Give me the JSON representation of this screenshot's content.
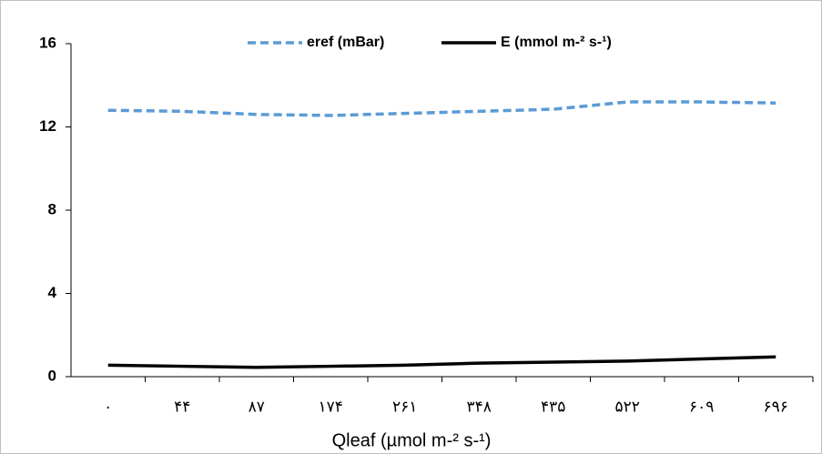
{
  "chart_data": {
    "type": "line",
    "x_label": "Qleaf (µmol m-² s-¹)",
    "categories": [
      "۰",
      "۴۴",
      "۸۷",
      "۱۷۴",
      "۲۶۱",
      "۳۴۸",
      "۴۳۵",
      "۵۲۲",
      "۶۰۹",
      "۶۹۶"
    ],
    "series": [
      {
        "name": "eref (mBar)",
        "color": "#5b9bd5",
        "dashed": true,
        "values": [
          12.8,
          12.75,
          12.6,
          12.55,
          12.65,
          12.75,
          12.85,
          13.2,
          13.2,
          13.15
        ]
      },
      {
        "name": "E (mmol m-² s-¹)",
        "color": "#000000",
        "dashed": false,
        "values": [
          0.55,
          0.5,
          0.45,
          0.5,
          0.55,
          0.65,
          0.7,
          0.75,
          0.85,
          0.95
        ]
      }
    ],
    "ylim": [
      0,
      16
    ],
    "yticks": [
      0,
      4,
      8,
      12,
      16
    ],
    "legend": "top"
  }
}
